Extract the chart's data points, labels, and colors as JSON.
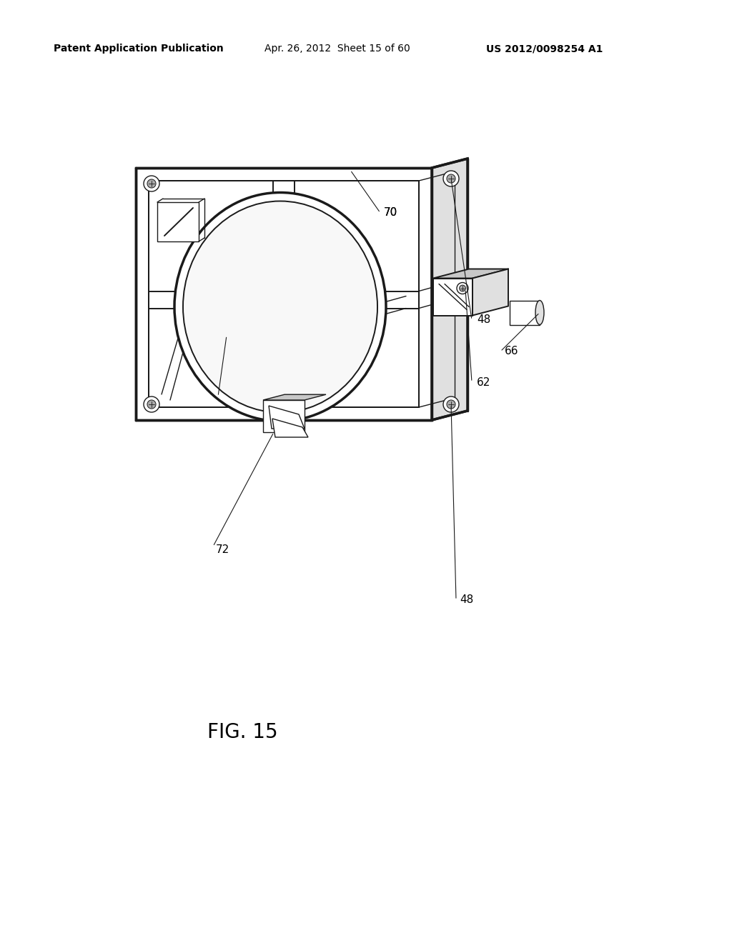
{
  "bg_color": "#ffffff",
  "line_color": "#1a1a1a",
  "header_left": "Patent Application Publication",
  "header_mid": "Apr. 26, 2012  Sheet 15 of 60",
  "header_right": "US 2012/0098254 A1",
  "fig_label": "FIG. 15",
  "lw_thick": 2.0,
  "lw_thin": 1.0,
  "lw_med": 1.4,
  "lw_heavy": 2.5,
  "panel_color": "#f5f5f5",
  "edge_color": "#e0e0e0",
  "dark_color": "#c8c8c8"
}
